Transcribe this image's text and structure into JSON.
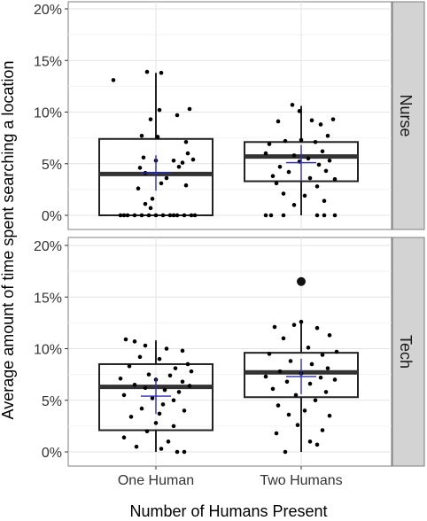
{
  "chart_data": {
    "type": "box",
    "xlabel": "Number of Humans Present",
    "ylabel": "Average amount of time spent searching a location",
    "categories": [
      "One Human",
      "Two Humans"
    ],
    "y_ticks": [
      "0%",
      "5%",
      "10%",
      "15%",
      "20%"
    ],
    "ylim": [
      0,
      0.21
    ],
    "grid": true,
    "facets": [
      {
        "label": "Nurse",
        "boxes": [
          {
            "category": "One Human",
            "q1": 0.0,
            "median": 0.04,
            "q3": 0.074,
            "whisker_low": 0.0,
            "whisker_high": 0.138,
            "mean": 0.041,
            "outliers": [],
            "points": [
              [
                -0.24,
                0.131
              ],
              [
                -0.05,
                0.139
              ],
              [
                0.03,
                0.138
              ],
              [
                0.02,
                0.102
              ],
              [
                -0.03,
                0.093
              ],
              [
                0.19,
                0.103
              ],
              [
                0.12,
                0.097
              ],
              [
                -0.08,
                0.077
              ],
              [
                0.01,
                0.076
              ],
              [
                0.17,
                0.071
              ],
              [
                0.18,
                0.06
              ],
              [
                0.21,
                0.054
              ],
              [
                0.15,
                0.051
              ],
              [
                -0.07,
                0.056
              ],
              [
                0.0,
                0.053
              ],
              [
                0.1,
                0.053
              ],
              [
                0.13,
                0.047
              ],
              [
                -0.09,
                0.046
              ],
              [
                -0.06,
                0.041
              ],
              [
                0.06,
                0.036
              ],
              [
                0.03,
                0.031
              ],
              [
                -0.1,
                0.026
              ],
              [
                0.17,
                0.029
              ],
              [
                -0.02,
                0.016
              ],
              [
                -0.06,
                0.011
              ],
              [
                -0.03,
                0.007
              ],
              [
                -0.2,
                0.0
              ],
              [
                -0.16,
                0.0
              ],
              [
                -0.12,
                0.0
              ],
              [
                -0.08,
                0.0
              ],
              [
                -0.04,
                0.0
              ],
              [
                0.0,
                0.0
              ],
              [
                0.04,
                0.0
              ],
              [
                0.08,
                0.0
              ],
              [
                0.12,
                0.0
              ],
              [
                0.16,
                0.0
              ],
              [
                0.2,
                0.0
              ],
              [
                -0.18,
                0.0
              ],
              [
                0.1,
                0.0
              ],
              [
                0.22,
                0.0
              ]
            ]
          },
          {
            "category": "Two Humans",
            "q1": 0.033,
            "median": 0.057,
            "q3": 0.071,
            "whisker_low": 0.0,
            "whisker_high": 0.106,
            "mean": 0.051,
            "outliers": [],
            "points": [
              [
                -0.05,
                0.107
              ],
              [
                -0.01,
                0.101
              ],
              [
                -0.13,
                0.091
              ],
              [
                0.06,
                0.092
              ],
              [
                0.18,
                0.093
              ],
              [
                0.11,
                0.088
              ],
              [
                0.15,
                0.077
              ],
              [
                -0.18,
                0.069
              ],
              [
                -0.09,
                0.072
              ],
              [
                0.0,
                0.073
              ],
              [
                0.08,
                0.071
              ],
              [
                0.12,
                0.062
              ],
              [
                -0.2,
                0.06
              ],
              [
                -0.04,
                0.058
              ],
              [
                0.04,
                0.055
              ],
              [
                0.16,
                0.053
              ],
              [
                -0.12,
                0.047
              ],
              [
                -0.01,
                0.052
              ],
              [
                0.1,
                0.049
              ],
              [
                -0.07,
                0.042
              ],
              [
                0.14,
                0.043
              ],
              [
                -0.16,
                0.038
              ],
              [
                0.05,
                0.036
              ],
              [
                0.19,
                0.035
              ],
              [
                -0.14,
                0.031
              ],
              [
                0.09,
                0.028
              ],
              [
                -0.1,
                0.021
              ],
              [
                0.02,
                0.019
              ],
              [
                0.13,
                0.014
              ],
              [
                -0.04,
                0.01
              ],
              [
                -0.2,
                0.0
              ],
              [
                -0.17,
                0.0
              ],
              [
                -0.1,
                0.0
              ],
              [
                0.09,
                0.0
              ],
              [
                0.13,
                0.0
              ],
              [
                0.19,
                0.0
              ]
            ]
          }
        ]
      },
      {
        "label": "Tech",
        "boxes": [
          {
            "category": "One Human",
            "q1": 0.021,
            "median": 0.063,
            "q3": 0.085,
            "whisker_low": 0.0,
            "whisker_high": 0.108,
            "mean": 0.054,
            "outliers": [],
            "points": [
              [
                -0.17,
                0.109
              ],
              [
                -0.12,
                0.107
              ],
              [
                -0.06,
                0.103
              ],
              [
                0.06,
                0.1
              ],
              [
                0.15,
                0.098
              ],
              [
                -0.09,
                0.092
              ],
              [
                0.02,
                0.09
              ],
              [
                0.18,
                0.085
              ],
              [
                -0.15,
                0.083
              ],
              [
                0.11,
                0.081
              ],
              [
                0.2,
                0.078
              ],
              [
                -0.04,
                0.075
              ],
              [
                0.08,
                0.074
              ],
              [
                -0.2,
                0.071
              ],
              [
                0.0,
                0.07
              ],
              [
                0.15,
                0.068
              ],
              [
                -0.12,
                0.065
              ],
              [
                0.19,
                0.064
              ],
              [
                -0.06,
                0.062
              ],
              [
                0.05,
                0.06
              ],
              [
                0.13,
                0.058
              ],
              [
                -0.18,
                0.055
              ],
              [
                -0.02,
                0.052
              ],
              [
                0.1,
                0.05
              ],
              [
                0.04,
                0.046
              ],
              [
                -0.08,
                0.042
              ],
              [
                0.16,
                0.04
              ],
              [
                0.02,
                0.037
              ],
              [
                -0.14,
                0.034
              ],
              [
                0.0,
                0.028
              ],
              [
                0.1,
                0.025
              ],
              [
                -0.05,
                0.02
              ],
              [
                -0.18,
                0.014
              ],
              [
                0.07,
                0.01
              ],
              [
                -0.11,
                0.005
              ],
              [
                0.03,
                0.003
              ],
              [
                0.12,
                0.0
              ],
              [
                0.16,
                0.0
              ]
            ]
          },
          {
            "category": "Two Humans",
            "q1": 0.053,
            "median": 0.077,
            "q3": 0.096,
            "whisker_low": 0.0,
            "whisker_high": 0.125,
            "mean": 0.073,
            "outliers": [
              0.165
            ],
            "points": [
              [
                -0.04,
                0.123
              ],
              [
                0.0,
                0.126
              ],
              [
                -0.15,
                0.121
              ],
              [
                0.09,
                0.12
              ],
              [
                0.16,
                0.113
              ],
              [
                -0.1,
                0.11
              ],
              [
                0.04,
                0.101
              ],
              [
                0.2,
                0.097
              ],
              [
                -0.18,
                0.095
              ],
              [
                0.12,
                0.094
              ],
              [
                -0.06,
                0.088
              ],
              [
                0.06,
                0.085
              ],
              [
                0.15,
                0.081
              ],
              [
                -0.12,
                0.078
              ],
              [
                0.0,
                0.076
              ],
              [
                -0.2,
                0.073
              ],
              [
                0.11,
                0.072
              ],
              [
                0.19,
                0.07
              ],
              [
                -0.08,
                0.068
              ],
              [
                0.05,
                0.066
              ],
              [
                -0.16,
                0.061
              ],
              [
                0.14,
                0.058
              ],
              [
                -0.03,
                0.055
              ],
              [
                0.08,
                0.05
              ],
              [
                -0.13,
                0.045
              ],
              [
                0.02,
                0.04
              ],
              [
                -0.07,
                0.036
              ],
              [
                0.16,
                0.035
              ],
              [
                -0.02,
                0.026
              ],
              [
                0.12,
                0.021
              ],
              [
                -0.14,
                0.018
              ],
              [
                0.05,
                0.01
              ],
              [
                0.09,
                0.007
              ],
              [
                -0.09,
                0.0
              ]
            ]
          }
        ]
      }
    ]
  }
}
